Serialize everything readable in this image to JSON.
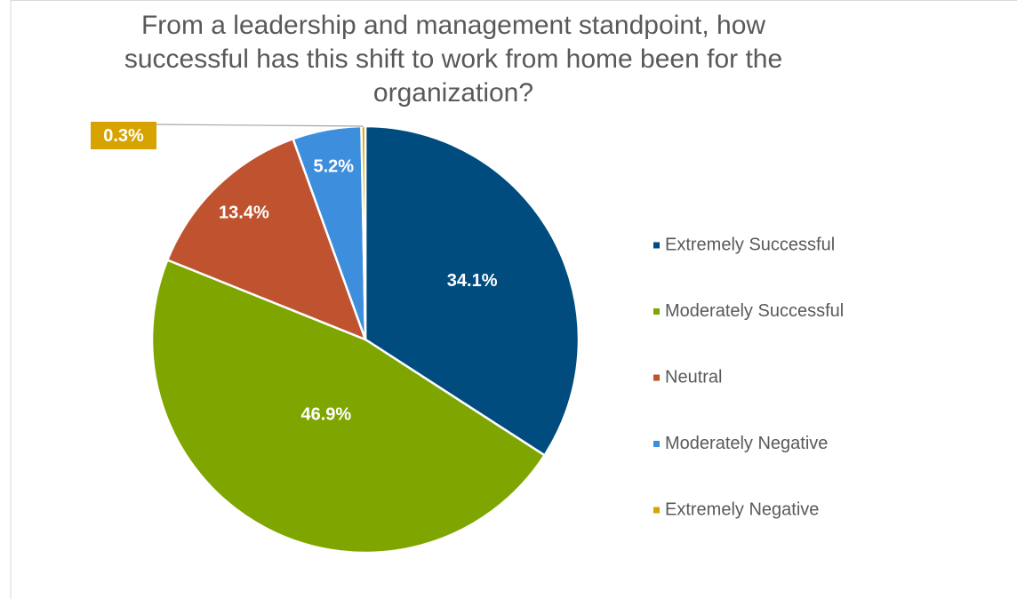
{
  "chart_data": {
    "type": "pie",
    "title": "From a leadership and management standpoint, how successful has this shift to work from home been for the organization?",
    "categories": [
      "Extremely Successful",
      "Moderately Successful",
      "Neutral",
      "Moderately Negative",
      "Extremely Negative"
    ],
    "values": [
      34.1,
      46.9,
      13.4,
      5.2,
      0.3
    ],
    "value_labels": [
      "34.1%",
      "46.9%",
      "13.4%",
      "5.2%",
      "0.3%"
    ],
    "colors": [
      "#004c7f",
      "#7fa600",
      "#c0532f",
      "#3e8ede",
      "#d6a300"
    ],
    "legend": "right"
  }
}
